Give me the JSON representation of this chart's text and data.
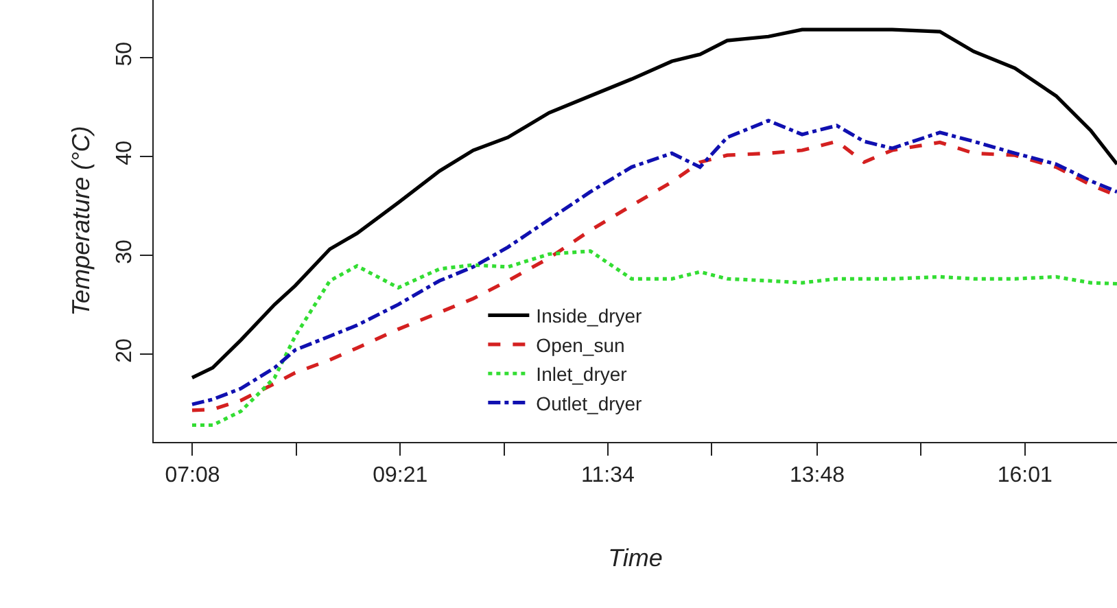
{
  "chart_data": {
    "type": "line",
    "xlabel": "Time",
    "ylabel": "Temperature (°C)",
    "x": [
      7.13,
      7.35,
      7.65,
      8.01,
      8.23,
      8.6,
      8.89,
      9.33,
      9.77,
      10.13,
      10.5,
      10.94,
      11.38,
      11.82,
      12.25,
      12.55,
      12.84,
      13.28,
      13.64,
      14.01,
      14.3,
      14.6,
      15.11,
      15.47,
      15.91,
      16.35,
      16.72,
      17.0
    ],
    "series": [
      {
        "name": "Inside_dryer",
        "color": "#000000",
        "line_style": "solid",
        "values": [
          17.6,
          18.6,
          21.4,
          25,
          26.9,
          30.6,
          32.2,
          35.3,
          38.5,
          40.6,
          41.9,
          44.4,
          46.1,
          47.8,
          49.6,
          50.3,
          51.7,
          52.1,
          52.8,
          52.8,
          52.8,
          52.8,
          52.6,
          50.6,
          48.9,
          46.1,
          42.6,
          39.2
        ]
      },
      {
        "name": "Open_sun",
        "color": "#d42020",
        "line_style": "dashed",
        "values": [
          14.3,
          14.4,
          15.3,
          17,
          18.1,
          19.4,
          20.6,
          22.5,
          24.2,
          25.6,
          27.4,
          29.7,
          32.5,
          35,
          37.4,
          39.4,
          40.1,
          40.3,
          40.6,
          41.5,
          39.4,
          40.6,
          41.4,
          40.3,
          40.1,
          38.9,
          37.1,
          36
        ]
      },
      {
        "name": "Inlet_dryer",
        "color": "#33dd33",
        "line_style": "dotted",
        "values": [
          12.8,
          12.8,
          14.2,
          17.6,
          21.8,
          27.4,
          28.9,
          26.7,
          28.6,
          29,
          28.8,
          30.1,
          30.4,
          27.6,
          27.6,
          28.3,
          27.6,
          27.4,
          27.2,
          27.6,
          27.6,
          27.6,
          27.8,
          27.6,
          27.6,
          27.8,
          27.2,
          27.1
        ]
      },
      {
        "name": "Outlet_dryer",
        "color": "#1010b0",
        "line_style": "dashdot",
        "values": [
          14.9,
          15.4,
          16.5,
          18.6,
          20.4,
          21.8,
          22.9,
          25,
          27.4,
          28.8,
          30.8,
          33.6,
          36.4,
          38.9,
          40.3,
          38.9,
          41.9,
          43.6,
          42.2,
          43.1,
          41.5,
          40.8,
          42.4,
          41.5,
          40.3,
          39.2,
          37.5,
          36.4
        ]
      }
    ],
    "xlim": [
      6.72,
      17.0
    ],
    "xticks": [
      {
        "value": 7.1333,
        "label": "07:08"
      },
      {
        "value": 8.2417,
        "label": null
      },
      {
        "value": 9.35,
        "label": "09:21"
      },
      {
        "value": 10.4583,
        "label": null
      },
      {
        "value": 11.5667,
        "label": "11:34"
      },
      {
        "value": 12.675,
        "label": null
      },
      {
        "value": 13.8,
        "label": "13:48"
      },
      {
        "value": 14.9083,
        "label": null
      },
      {
        "value": 16.0167,
        "label": "16:01"
      }
    ],
    "ylim": [
      11.1,
      55.8
    ],
    "yticks": [
      20,
      30,
      40,
      50
    ],
    "legend": "bottom",
    "marker": "none"
  }
}
